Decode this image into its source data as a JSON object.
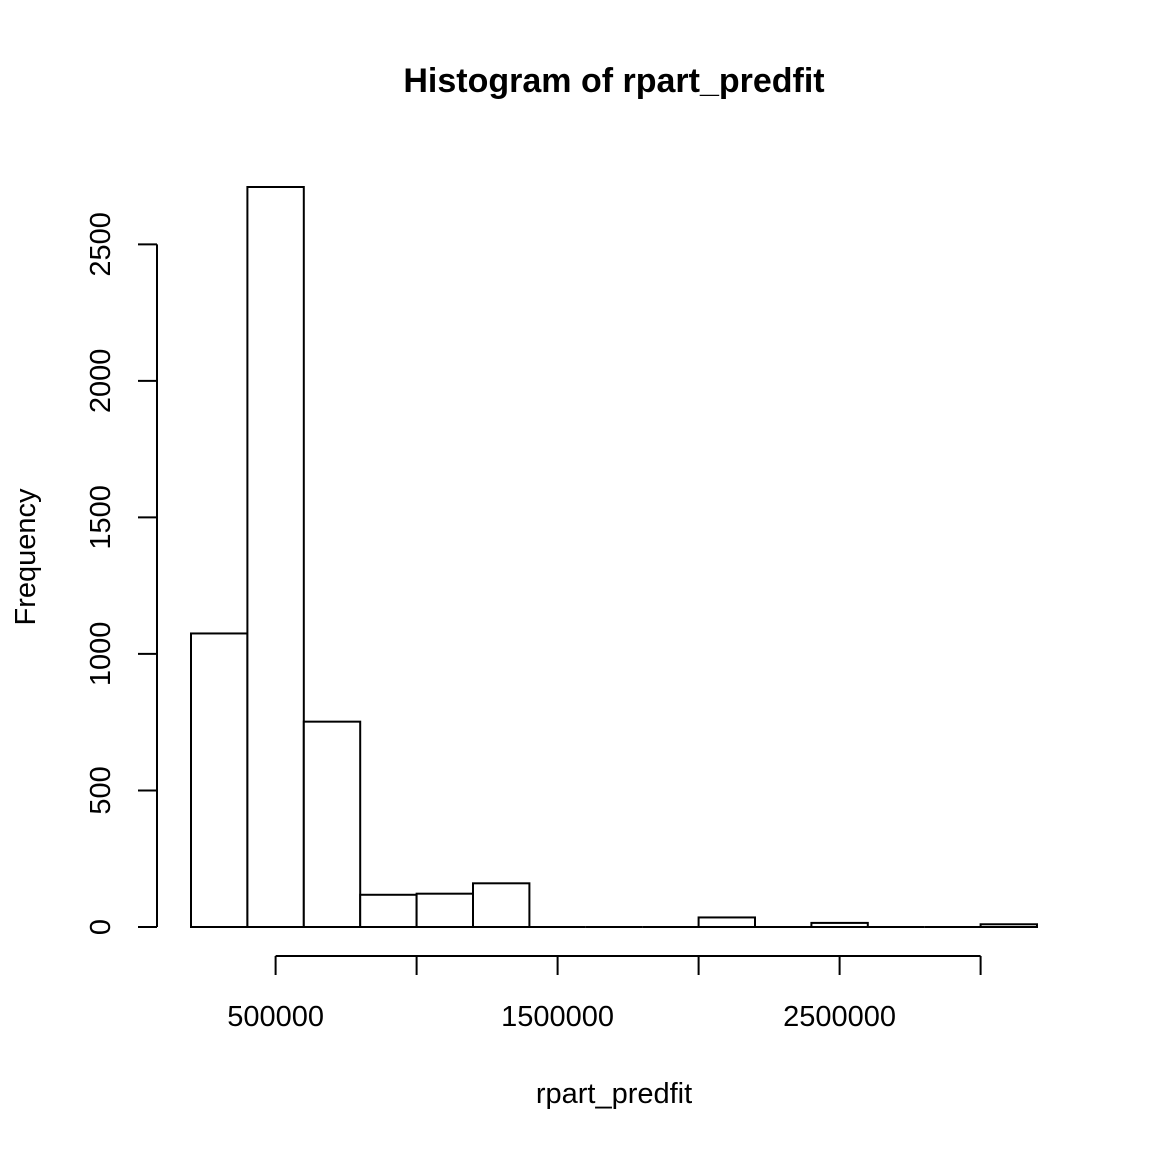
{
  "chart_data": {
    "type": "bar",
    "title": "Histogram of rpart_predfit",
    "xlabel": "rpart_predfit",
    "ylabel": "Frequency",
    "bin_edges": [
      200000,
      400000,
      600000,
      800000,
      1000000,
      1200000,
      1400000,
      1600000,
      1800000,
      2000000,
      2200000,
      2400000,
      2600000,
      2800000,
      3000000,
      3200000
    ],
    "values": [
      1075,
      2710,
      752,
      118,
      122,
      160,
      0,
      0,
      0,
      35,
      0,
      15,
      0,
      0,
      10
    ],
    "xlim": [
      200000,
      3200000
    ],
    "ylim": [
      0,
      2710
    ],
    "x_ticks": [
      500000,
      1000000,
      1500000,
      2000000,
      2500000,
      3000000
    ],
    "x_tick_labels": [
      "500000",
      "",
      "1500000",
      "",
      "2500000",
      ""
    ],
    "y_ticks": [
      0,
      500,
      1000,
      1500,
      2000,
      2500
    ],
    "y_tick_labels": [
      "0",
      "500",
      "1000",
      "1500",
      "2000",
      "2500"
    ],
    "grid": false,
    "colors": {
      "bar_fill": "#ffffff",
      "bar_stroke": "#000000"
    }
  }
}
